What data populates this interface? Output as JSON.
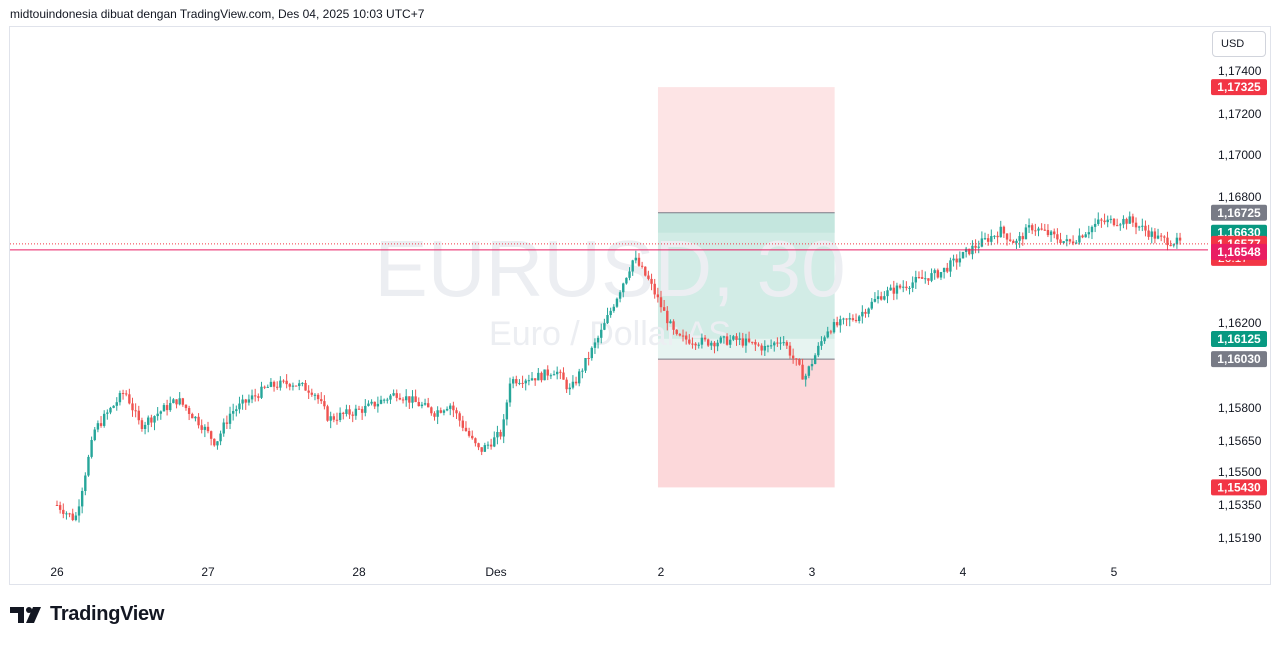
{
  "header": {
    "attribution": "midtouindonesia dibuat dengan TradingView.com, Des 04, 2025 10:03 UTC+7"
  },
  "currency_button": {
    "label": "USD"
  },
  "watermark": {
    "symbol": "EURUSD, 30",
    "description": "Euro / Dollar AS"
  },
  "footer": {
    "brand": "TradingView"
  },
  "colors": {
    "up": "#26a69a",
    "down": "#ef5350",
    "price_line": "#f23645",
    "target_zone": "#d2ece6",
    "stop_zone": "#fde4e5",
    "stop_zone_far": "#fcd8da",
    "entry_tag": "#787b86",
    "target_tag": "#089981",
    "stop_tag": "#f23645",
    "alert_tag": "#e91e63"
  },
  "chart_data": {
    "type": "candlestick",
    "symbol": "EURUSD",
    "timeframe": "30",
    "x_ticks": [
      "26",
      "27",
      "28",
      "Des",
      "2",
      "3",
      "4",
      "5"
    ],
    "y_ticks": [
      "1,17400",
      "1,17200",
      "1,17000",
      "1,16800",
      "1,16200",
      "1,15800",
      "1,15650",
      "1,15500",
      "1,15350",
      "1,15190"
    ],
    "ylim": [
      1.1513,
      1.1747
    ],
    "price_tags": [
      {
        "label": "1,17325",
        "value": 1.17325,
        "kind": "stop"
      },
      {
        "label": "1,16725",
        "value": 1.16725,
        "kind": "entry"
      },
      {
        "label": "1,16630",
        "value": 1.1663,
        "kind": "target"
      },
      {
        "label": "1,16577",
        "value": 1.16577,
        "kind": "current",
        "countdown": "26:17"
      },
      {
        "label": "1,16548",
        "value": 1.16548,
        "kind": "alert"
      },
      {
        "label": "1,16125",
        "value": 1.16125,
        "kind": "target"
      },
      {
        "label": "1,16030",
        "value": 1.1603,
        "kind": "entry"
      },
      {
        "label": "1,15430",
        "value": 1.1543,
        "kind": "stop"
      }
    ],
    "position_tool": {
      "top_stop": 1.17325,
      "entry_top": 1.16725,
      "mid": 1.1663,
      "target_bottom": 1.16125,
      "entry_bottom": 1.1603,
      "bottom_stop": 1.1543,
      "start_day": 3.98,
      "end_day": 5.15
    },
    "anchors": [
      [
        0.0,
        1.1535
      ],
      [
        0.12,
        1.1528
      ],
      [
        0.25,
        1.157
      ],
      [
        0.45,
        1.1588
      ],
      [
        0.55,
        1.1572
      ],
      [
        0.8,
        1.1584
      ],
      [
        0.95,
        1.1573
      ],
      [
        1.05,
        1.1564
      ],
      [
        1.15,
        1.1578
      ],
      [
        1.4,
        1.159
      ],
      [
        1.55,
        1.1592
      ],
      [
        1.7,
        1.1588
      ],
      [
        1.8,
        1.1575
      ],
      [
        2.05,
        1.158
      ],
      [
        2.25,
        1.1587
      ],
      [
        2.5,
        1.1578
      ],
      [
        2.6,
        1.1582
      ],
      [
        2.75,
        1.1565
      ],
      [
        2.8,
        1.156
      ],
      [
        2.95,
        1.1569
      ],
      [
        3.0,
        1.1593
      ],
      [
        3.2,
        1.1595
      ],
      [
        3.3,
        1.1598
      ],
      [
        3.4,
        1.1588
      ],
      [
        3.6,
        1.1615
      ],
      [
        3.82,
        1.1651
      ],
      [
        3.92,
        1.164
      ],
      [
        4.1,
        1.1613
      ],
      [
        4.3,
        1.1611
      ],
      [
        4.5,
        1.1612
      ],
      [
        4.7,
        1.1608
      ],
      [
        4.8,
        1.1613
      ],
      [
        4.95,
        1.1594
      ],
      [
        5.1,
        1.1617
      ],
      [
        5.3,
        1.1623
      ],
      [
        5.45,
        1.1633
      ],
      [
        5.65,
        1.1639
      ],
      [
        5.85,
        1.1644
      ],
      [
        6.05,
        1.1655
      ],
      [
        6.25,
        1.1664
      ],
      [
        6.35,
        1.1658
      ],
      [
        6.45,
        1.1666
      ],
      [
        6.7,
        1.1658
      ],
      [
        6.9,
        1.1668
      ],
      [
        7.1,
        1.1669
      ],
      [
        7.3,
        1.166
      ],
      [
        7.45,
        1.1658
      ]
    ]
  }
}
